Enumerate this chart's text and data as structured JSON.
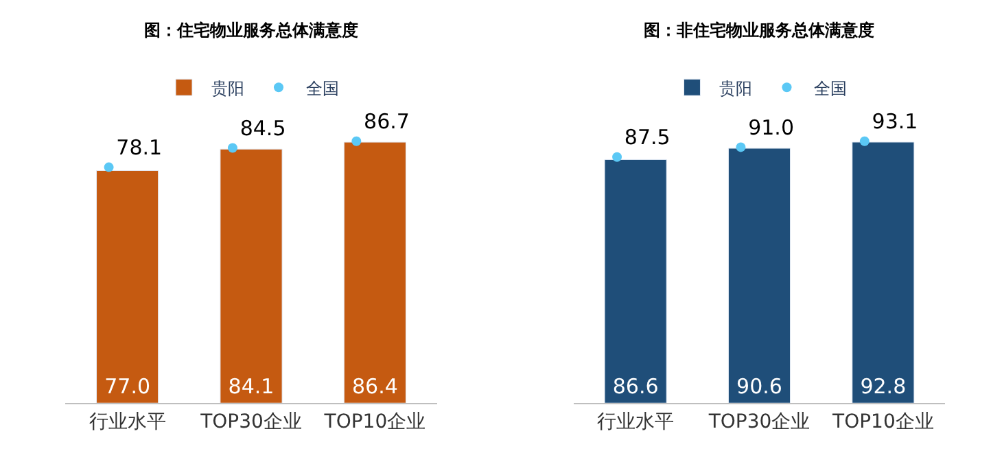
{
  "chart_data": [
    {
      "type": "bar",
      "title": "图：住宅物业服务总体满意度",
      "categories": [
        "行业水平",
        "TOP30企业",
        "TOP10企业"
      ],
      "tick_labels": "x",
      "legend": "top",
      "series": [
        {
          "name": "贵阳",
          "color": "#c55a11",
          "values": [
            77.0,
            84.1,
            86.4
          ],
          "value_labels": [
            "77.0",
            "84.1",
            "86.4"
          ]
        },
        {
          "name": "全国",
          "type": "scatter",
          "color": "#5bc8f5",
          "values": [
            78.1,
            84.5,
            86.7
          ],
          "value_labels": [
            "78.1",
            "84.5",
            "86.7"
          ]
        }
      ]
    },
    {
      "type": "bar",
      "title": "图：非住宅物业服务总体满意度",
      "categories": [
        "行业水平",
        "TOP30企业",
        "TOP10企业"
      ],
      "tick_labels": "x",
      "legend": "top",
      "series": [
        {
          "name": "贵阳",
          "color": "#1f4e79",
          "values": [
            86.6,
            90.6,
            92.8
          ],
          "value_labels": [
            "86.6",
            "90.6",
            "92.8"
          ]
        },
        {
          "name": "全国",
          "type": "scatter",
          "color": "#5bc8f5",
          "values": [
            87.5,
            91.0,
            93.1
          ],
          "value_labels": [
            "87.5",
            "91.0",
            "93.1"
          ]
        }
      ]
    }
  ]
}
